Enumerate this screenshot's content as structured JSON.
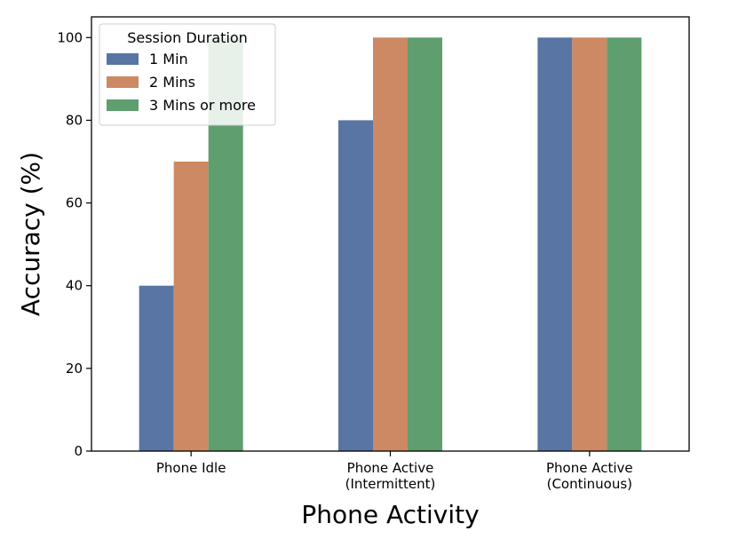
{
  "chart_data": {
    "type": "bar",
    "categories": [
      [
        "Phone Idle"
      ],
      [
        "Phone Active",
        "(Intermittent)"
      ],
      [
        "Phone Active",
        "(Continuous)"
      ]
    ],
    "series": [
      {
        "name": "1 Min",
        "values": [
          40,
          80,
          100
        ],
        "color": "#5975a4"
      },
      {
        "name": "2 Mins",
        "values": [
          70,
          100,
          100
        ],
        "color": "#cc8963"
      },
      {
        "name": "3 Mins or more",
        "values": [
          100,
          100,
          100
        ],
        "color": "#5f9e6e"
      }
    ],
    "xlabel": "Phone Activity",
    "ylabel": "Accuracy (%)",
    "ylim": [
      0,
      105
    ],
    "yticks": [
      0,
      20,
      40,
      60,
      80,
      100
    ],
    "legend": {
      "title": "Session Duration",
      "placement": "top-left"
    },
    "grid": false
  }
}
